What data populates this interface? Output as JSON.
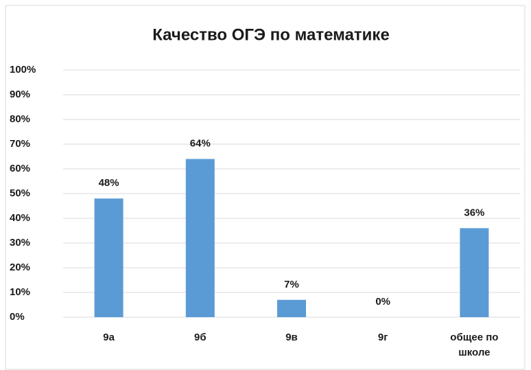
{
  "chart_data": {
    "type": "bar",
    "title": "Качество  ОГЭ по математике",
    "categories": [
      "9а",
      "9б",
      "9в",
      "9г",
      "общее по школе"
    ],
    "values": [
      48,
      64,
      7,
      0,
      36
    ],
    "value_labels": [
      "48%",
      "64%",
      "7%",
      "0%",
      "36%"
    ],
    "color": "#5b9bd5",
    "ylim": [
      0,
      100
    ],
    "yticks": [
      {
        "value": 0,
        "label": "0%"
      },
      {
        "value": 10,
        "label": "10%"
      },
      {
        "value": 20,
        "label": "20%"
      },
      {
        "value": 30,
        "label": "30%"
      },
      {
        "value": 40,
        "label": "40%"
      },
      {
        "value": 50,
        "label": "50%"
      },
      {
        "value": 60,
        "label": "60%"
      },
      {
        "value": 70,
        "label": "70%"
      },
      {
        "value": 80,
        "label": "80%"
      },
      {
        "value": 90,
        "label": "90%"
      },
      {
        "value": 100,
        "label": "100%"
      }
    ],
    "grid": true
  }
}
